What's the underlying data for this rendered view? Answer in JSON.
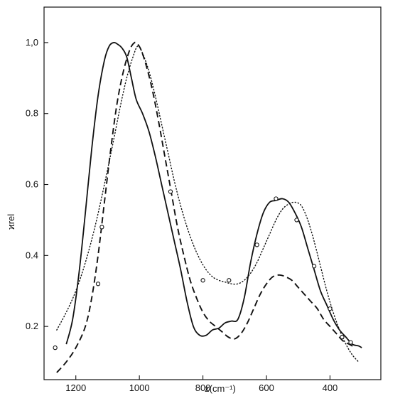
{
  "chart_data": {
    "type": "line",
    "title": "",
    "xlabel": "z(cm⁻¹)",
    "ylabel": "ϰrel",
    "xlim": [
      1300,
      240
    ],
    "ylim": [
      0.05,
      1.1
    ],
    "x_reversed": true,
    "grid": false,
    "legend": "none",
    "x_ticks": [
      {
        "value": 1200,
        "label": "1200"
      },
      {
        "value": 1000,
        "label": "1000"
      },
      {
        "value": 800,
        "label": "800"
      },
      {
        "value": 600,
        "label": "600"
      },
      {
        "value": 400,
        "label": "400"
      }
    ],
    "y_ticks": [
      {
        "value": 0.2,
        "label": "0.2"
      },
      {
        "value": 0.4,
        "label": "0.4"
      },
      {
        "value": 0.6,
        "label": "0.6"
      },
      {
        "value": 0.8,
        "label": "0.8"
      },
      {
        "value": 1.0,
        "label": "1,0"
      }
    ],
    "series": [
      {
        "style": "solid",
        "x": [
          1230,
          1210,
          1190,
          1170,
          1150,
          1130,
          1110,
          1095,
          1080,
          1068,
          1055,
          1040,
          1025,
          1010,
          990,
          970,
          950,
          930,
          910,
          890,
          870,
          850,
          830,
          810,
          790,
          770,
          750,
          730,
          710,
          690,
          670,
          650,
          630,
          610,
          590,
          570,
          550,
          530,
          510,
          490,
          470,
          450,
          430,
          410,
          390,
          370,
          350,
          330,
          310,
          300
        ],
        "y": [
          0.15,
          0.22,
          0.35,
          0.52,
          0.7,
          0.85,
          0.95,
          0.99,
          1.0,
          0.995,
          0.985,
          0.96,
          0.9,
          0.84,
          0.8,
          0.75,
          0.68,
          0.6,
          0.52,
          0.44,
          0.36,
          0.27,
          0.2,
          0.175,
          0.175,
          0.19,
          0.195,
          0.21,
          0.215,
          0.22,
          0.28,
          0.38,
          0.46,
          0.52,
          0.55,
          0.555,
          0.56,
          0.55,
          0.52,
          0.48,
          0.42,
          0.36,
          0.3,
          0.26,
          0.22,
          0.19,
          0.17,
          0.15,
          0.145,
          0.14
        ]
      },
      {
        "style": "dashed",
        "x": [
          1260,
          1230,
          1200,
          1170,
          1150,
          1130,
          1110,
          1090,
          1070,
          1050,
          1030,
          1015,
          1005,
          995,
          980,
          960,
          940,
          920,
          900,
          880,
          860,
          840,
          820,
          800,
          780,
          760,
          740,
          720,
          700,
          680,
          660,
          640,
          620,
          600,
          580,
          560,
          540,
          520,
          500,
          480,
          460,
          440,
          420,
          400,
          380,
          360,
          340,
          320
        ],
        "y": [
          0.07,
          0.1,
          0.14,
          0.2,
          0.28,
          0.4,
          0.55,
          0.7,
          0.83,
          0.92,
          0.98,
          1.0,
          0.995,
          0.98,
          0.94,
          0.87,
          0.78,
          0.68,
          0.58,
          0.48,
          0.4,
          0.33,
          0.28,
          0.24,
          0.215,
          0.2,
          0.185,
          0.17,
          0.165,
          0.18,
          0.21,
          0.25,
          0.29,
          0.32,
          0.34,
          0.345,
          0.34,
          0.33,
          0.31,
          0.29,
          0.27,
          0.25,
          0.22,
          0.2,
          0.18,
          0.16,
          0.15,
          0.14
        ]
      },
      {
        "style": "dotted",
        "x": [
          1260,
          1230,
          1200,
          1170,
          1140,
          1110,
          1080,
          1060,
          1040,
          1020,
          1005,
          990,
          970,
          950,
          930,
          910,
          890,
          870,
          850,
          830,
          810,
          790,
          770,
          750,
          730,
          710,
          690,
          670,
          650,
          630,
          610,
          590,
          570,
          550,
          530,
          510,
          490,
          470,
          450,
          430,
          410,
          390,
          370,
          350,
          330,
          310
        ],
        "y": [
          0.19,
          0.24,
          0.3,
          0.38,
          0.48,
          0.6,
          0.73,
          0.82,
          0.9,
          0.96,
          0.99,
          0.97,
          0.92,
          0.85,
          0.77,
          0.69,
          0.61,
          0.54,
          0.48,
          0.43,
          0.39,
          0.36,
          0.34,
          0.33,
          0.325,
          0.32,
          0.32,
          0.33,
          0.35,
          0.38,
          0.42,
          0.46,
          0.5,
          0.53,
          0.545,
          0.55,
          0.54,
          0.5,
          0.44,
          0.37,
          0.3,
          0.24,
          0.19,
          0.15,
          0.12,
          0.1
        ]
      },
      {
        "style": "markers",
        "x": [
          1265,
          1130,
          1118,
          902,
          800,
          718,
          630,
          570,
          505,
          450,
          400,
          362,
          335
        ],
        "y": [
          0.14,
          0.32,
          0.48,
          0.58,
          0.33,
          0.33,
          0.43,
          0.56,
          0.5,
          0.37,
          0.25,
          0.17,
          0.155
        ]
      }
    ]
  }
}
